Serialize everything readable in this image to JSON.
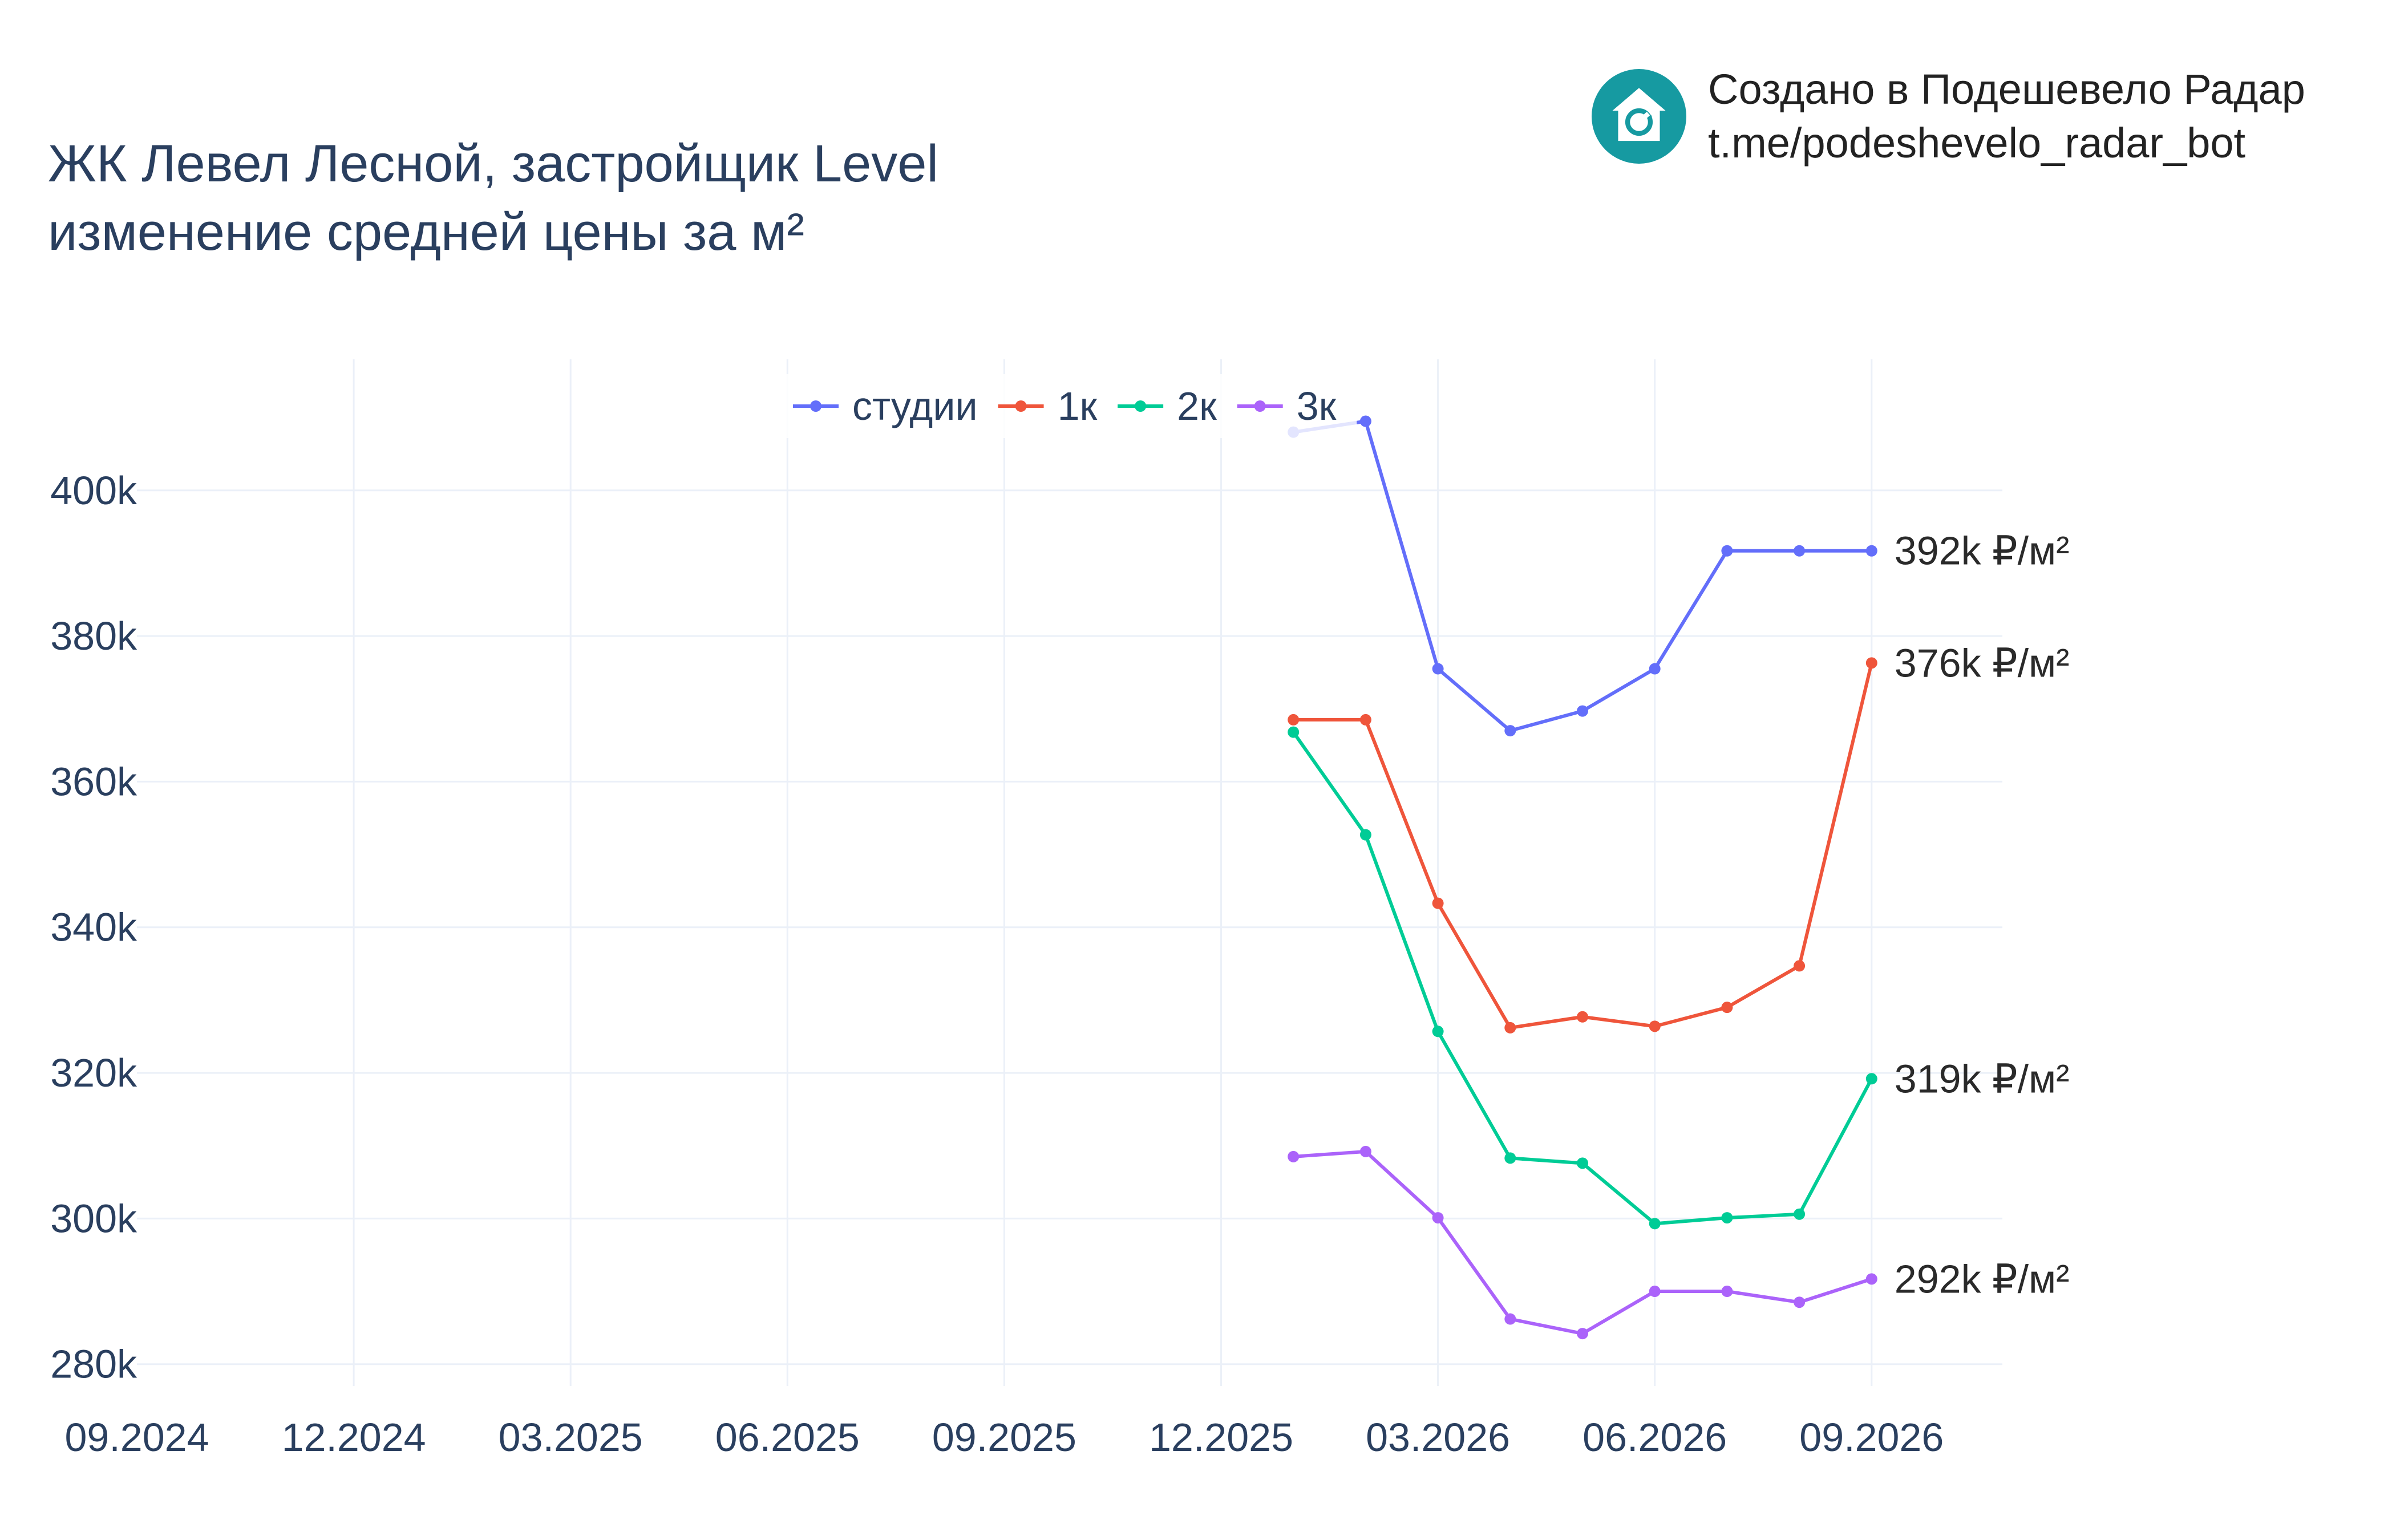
{
  "title": {
    "line1": "ЖК Левел Лесной, застройщик Level",
    "line2": "изменение средней цены за м²"
  },
  "brand": {
    "line1": "Создано в Подешевело Радар",
    "line2": "t.me/podeshevelo_radar_bot",
    "logo_icon": "house-refresh-icon",
    "logo_color": "#169aa1"
  },
  "chart_data": {
    "type": "line",
    "x_ticks": [
      "09.2024",
      "12.2024",
      "03.2025",
      "06.2025",
      "09.2025",
      "12.2025",
      "03.2026",
      "06.2026",
      "09.2026"
    ],
    "y_ticks": [
      "280k",
      "300k",
      "320k",
      "340k",
      "360k",
      "380k",
      "400k"
    ],
    "ylim": [
      277000,
      418000
    ],
    "x": [
      "01.2026",
      "02.2026",
      "03.2026",
      "04.2026",
      "05.2026",
      "06.2026",
      "07.2026",
      "08.2026",
      "09.2026"
    ],
    "series": [
      {
        "name": "студии",
        "color": "#636efa",
        "values": [
          408000,
          409500,
          375500,
          367000,
          369700,
          375500,
          391700,
          391700,
          391700
        ],
        "end_label": "392k ₽/м²"
      },
      {
        "name": "1к",
        "color": "#ef553b",
        "values": [
          368500,
          368500,
          343300,
          326200,
          327700,
          326400,
          329000,
          334700,
          376300
        ],
        "end_label": "376k ₽/м²"
      },
      {
        "name": "2к",
        "color": "#00cc96",
        "values": [
          366800,
          352700,
          325700,
          308300,
          307600,
          299300,
          300100,
          300600,
          319200
        ],
        "end_label": "319k ₽/м²"
      },
      {
        "name": "3к",
        "color": "#ab63fa",
        "values": [
          308500,
          309200,
          300100,
          286200,
          284200,
          290000,
          290000,
          288500,
          291700
        ],
        "end_label": "292k ₽/м²"
      }
    ],
    "grid": true,
    "legend_position": "top-center"
  }
}
